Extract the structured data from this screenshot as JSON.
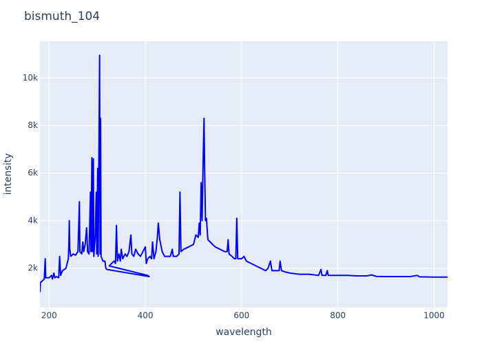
{
  "chart_data": {
    "type": "line",
    "title": "bismuth_104",
    "x_label": "wavelength",
    "y_label": "intensity",
    "color": "#0000ff",
    "grid": true,
    "xlim": [
      181,
      1028
    ],
    "ylim": [
      350,
      11540
    ],
    "xticks": [
      200,
      400,
      600,
      800,
      1000
    ],
    "yticks": [
      {
        "value": 2000,
        "label": "2k"
      },
      {
        "value": 4000,
        "label": "4k"
      },
      {
        "value": 6000,
        "label": "6k"
      },
      {
        "value": 8000,
        "label": "8k"
      },
      {
        "value": 10000,
        "label": "10k"
      }
    ],
    "x": [
      181,
      182,
      185,
      190,
      192,
      193,
      200,
      205,
      207,
      210,
      212,
      215,
      220,
      222,
      224,
      228,
      235,
      240,
      241,
      242,
      243,
      245,
      250,
      255,
      260,
      263,
      264,
      268,
      270,
      272,
      275,
      278,
      280,
      283,
      286,
      287,
      289,
      290,
      292,
      293,
      296,
      298,
      299,
      301,
      302,
      305,
      306,
      307,
      308,
      312,
      316,
      318,
      320,
      408,
      405,
      325,
      330,
      335,
      338,
      340,
      342,
      345,
      348,
      350,
      353,
      358,
      362,
      366,
      370,
      372,
      376,
      380,
      385,
      390,
      395,
      400,
      402,
      405,
      410,
      413,
      415,
      418,
      422,
      425,
      427,
      430,
      435,
      440,
      445,
      452,
      456,
      458,
      465,
      470,
      472,
      474,
      480,
      490,
      500,
      505,
      510,
      512,
      514,
      516,
      518,
      520,
      522,
      523,
      525,
      527,
      530,
      535,
      545,
      555,
      565,
      570,
      572,
      574,
      580,
      585,
      588,
      590,
      592,
      600,
      605,
      610,
      620,
      630,
      640,
      650,
      655,
      660,
      663,
      670,
      678,
      680,
      683,
      690,
      700,
      720,
      740,
      760,
      765,
      767,
      775,
      778,
      780,
      800,
      820,
      840,
      860,
      870,
      880,
      900,
      950,
      965,
      970,
      1000,
      1028
    ],
    "values": [
      1000,
      1400,
      1450,
      1550,
      2400,
      1600,
      1600,
      1700,
      1550,
      1800,
      1600,
      1650,
      1600,
      2500,
      1700,
      1900,
      2000,
      2400,
      2900,
      4000,
      2800,
      2500,
      2600,
      2550,
      2700,
      4800,
      2700,
      2600,
      3100,
      2700,
      3000,
      3700,
      2700,
      2600,
      5200,
      2700,
      6650,
      2700,
      6600,
      2500,
      3400,
      5200,
      2600,
      6200,
      2500,
      10950,
      2600,
      8300,
      2500,
      2300,
      2300,
      2000,
      1950,
      1650,
      1700,
      2100,
      2200,
      2300,
      2200,
      3800,
      2300,
      2600,
      2300,
      2800,
      2400,
      2600,
      2500,
      2700,
      3400,
      2600,
      2500,
      2800,
      2600,
      2500,
      2700,
      2900,
      2200,
      2400,
      2500,
      2400,
      3100,
      2400,
      2700,
      3300,
      3900,
      3200,
      2700,
      2500,
      2500,
      2500,
      2800,
      2500,
      2500,
      2600,
      5200,
      2700,
      2800,
      2900,
      3000,
      3400,
      3300,
      3900,
      3400,
      5600,
      4000,
      6400,
      8300,
      6500,
      4000,
      4100,
      3200,
      3100,
      2900,
      2800,
      2700,
      2700,
      3200,
      2600,
      2500,
      2400,
      2400,
      4100,
      2400,
      2400,
      2500,
      2300,
      2200,
      2100,
      2000,
      1900,
      2000,
      2300,
      1900,
      1900,
      1900,
      2300,
      1900,
      1850,
      1800,
      1750,
      1750,
      1700,
      1950,
      1700,
      1700,
      1900,
      1700,
      1700,
      1700,
      1680,
      1680,
      1720,
      1660,
      1650,
      1650,
      1700,
      1640,
      1630,
      1630
    ]
  }
}
